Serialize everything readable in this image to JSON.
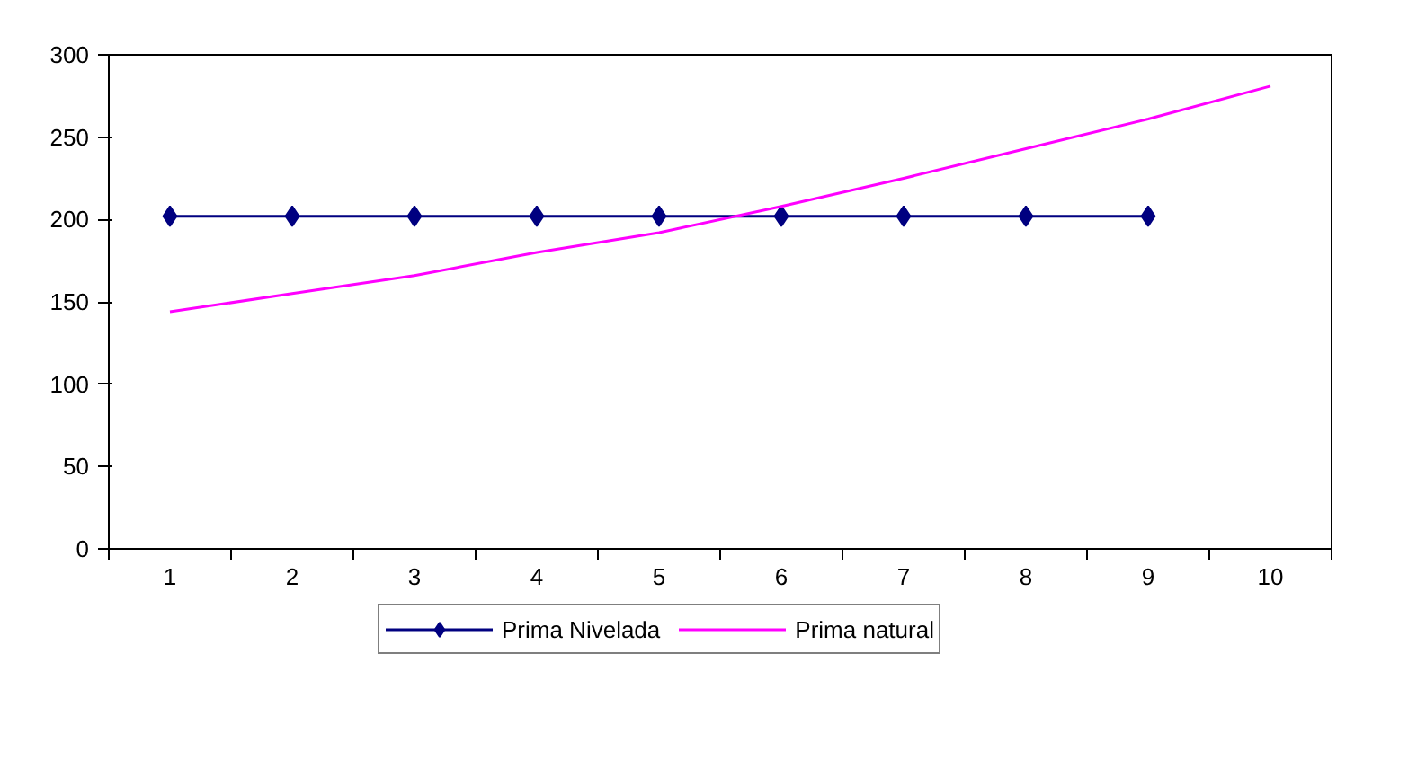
{
  "chart_data": {
    "type": "line",
    "categories": [
      "1",
      "2",
      "3",
      "4",
      "5",
      "6",
      "7",
      "8",
      "9",
      "10"
    ],
    "series": [
      {
        "name": "Prima Nivelada",
        "color": "#000080",
        "marker": "diamond",
        "values": [
          202,
          202,
          202,
          202,
          202,
          202,
          202,
          202,
          202,
          null
        ]
      },
      {
        "name": "Prima natural",
        "color": "#ff00ff",
        "marker": "none",
        "values": [
          144,
          155,
          166,
          180,
          192,
          208,
          225,
          243,
          261,
          281
        ]
      }
    ],
    "ylim": [
      0,
      300
    ],
    "yticks": [
      0,
      50,
      100,
      150,
      200,
      250,
      300
    ],
    "grid": false,
    "legend": "bottom"
  }
}
